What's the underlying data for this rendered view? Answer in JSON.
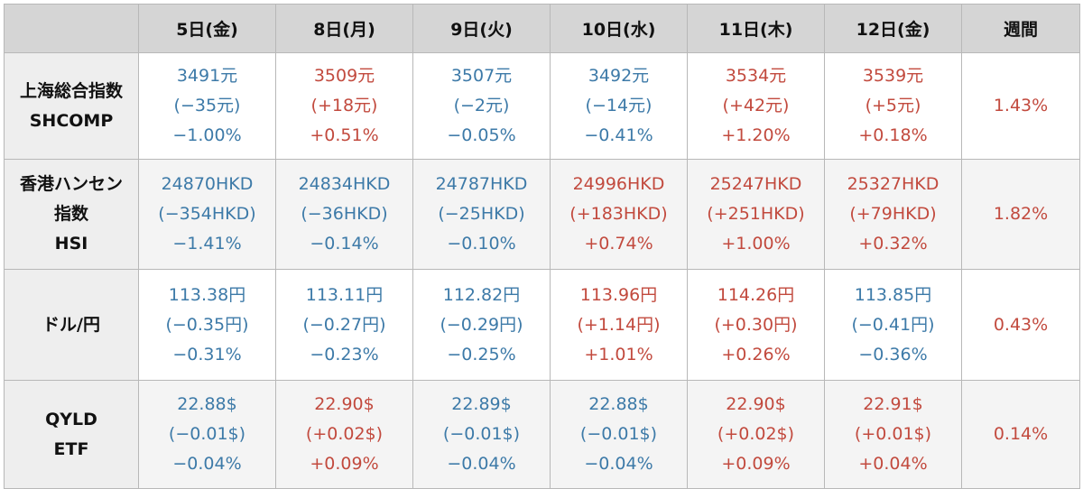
{
  "colors": {
    "down": "#3d7aa8",
    "up": "#c24a3e",
    "header_bg": "#d5d5d5",
    "label_bg": "#eeeeee"
  },
  "header": {
    "corner": "",
    "days": [
      "5日(金)",
      "8日(月)",
      "9日(火)",
      "10日(水)",
      "11日(木)",
      "12日(金)"
    ],
    "weekly": "週間"
  },
  "rows": [
    {
      "label": [
        "上海総合指数",
        "SHCOMP"
      ],
      "cells": [
        {
          "dir": "down",
          "lines": [
            "3491元",
            "(−35元)",
            "−1.00%"
          ]
        },
        {
          "dir": "up",
          "lines": [
            "3509元",
            "(+18元)",
            "+0.51%"
          ]
        },
        {
          "dir": "down",
          "lines": [
            "3507元",
            "(−2元)",
            "−0.05%"
          ]
        },
        {
          "dir": "down",
          "lines": [
            "3492元",
            "(−14元)",
            "−0.41%"
          ]
        },
        {
          "dir": "up",
          "lines": [
            "3534元",
            "(+42元)",
            "+1.20%"
          ]
        },
        {
          "dir": "up",
          "lines": [
            "3539元",
            "(+5元)",
            "+0.18%"
          ]
        }
      ],
      "weekly": "1.43%"
    },
    {
      "label": [
        "香港ハンセン",
        "指数",
        "HSI"
      ],
      "cells": [
        {
          "dir": "down",
          "lines": [
            "24870HKD",
            "(−354HKD)",
            "−1.41%"
          ]
        },
        {
          "dir": "down",
          "lines": [
            "24834HKD",
            "(−36HKD)",
            "−0.14%"
          ]
        },
        {
          "dir": "down",
          "lines": [
            "24787HKD",
            "(−25HKD)",
            "−0.10%"
          ]
        },
        {
          "dir": "up",
          "lines": [
            "24996HKD",
            "(+183HKD)",
            "+0.74%"
          ]
        },
        {
          "dir": "up",
          "lines": [
            "25247HKD",
            "(+251HKD)",
            "+1.00%"
          ]
        },
        {
          "dir": "up",
          "lines": [
            "25327HKD",
            "(+79HKD)",
            "+0.32%"
          ]
        }
      ],
      "weekly": "1.82%"
    },
    {
      "label": [
        "ドル/円"
      ],
      "cells": [
        {
          "dir": "down",
          "lines": [
            "113.38円",
            "(−0.35円)",
            "−0.31%"
          ]
        },
        {
          "dir": "down",
          "lines": [
            "113.11円",
            "(−0.27円)",
            "−0.23%"
          ]
        },
        {
          "dir": "down",
          "lines": [
            "112.82円",
            "(−0.29円)",
            "−0.25%"
          ]
        },
        {
          "dir": "up",
          "lines": [
            "113.96円",
            "(+1.14円)",
            "+1.01%"
          ]
        },
        {
          "dir": "up",
          "lines": [
            "114.26円",
            "(+0.30円)",
            "+0.26%"
          ]
        },
        {
          "dir": "down",
          "lines": [
            "113.85円",
            "(−0.41円)",
            "−0.36%"
          ]
        }
      ],
      "weekly": "0.43%"
    },
    {
      "label": [
        "QYLD",
        "ETF"
      ],
      "cells": [
        {
          "dir": "down",
          "lines": [
            "22.88$",
            "(−0.01$)",
            "−0.04%"
          ]
        },
        {
          "dir": "up",
          "lines": [
            "22.90$",
            "(+0.02$)",
            "+0.09%"
          ]
        },
        {
          "dir": "down",
          "lines": [
            "22.89$",
            "(−0.01$)",
            "−0.04%"
          ]
        },
        {
          "dir": "down",
          "lines": [
            "22.88$",
            "(−0.01$)",
            "−0.04%"
          ]
        },
        {
          "dir": "up",
          "lines": [
            "22.90$",
            "(+0.02$)",
            "+0.09%"
          ]
        },
        {
          "dir": "up",
          "lines": [
            "22.91$",
            "(+0.01$)",
            "+0.04%"
          ]
        }
      ],
      "weekly": "0.14%"
    }
  ]
}
